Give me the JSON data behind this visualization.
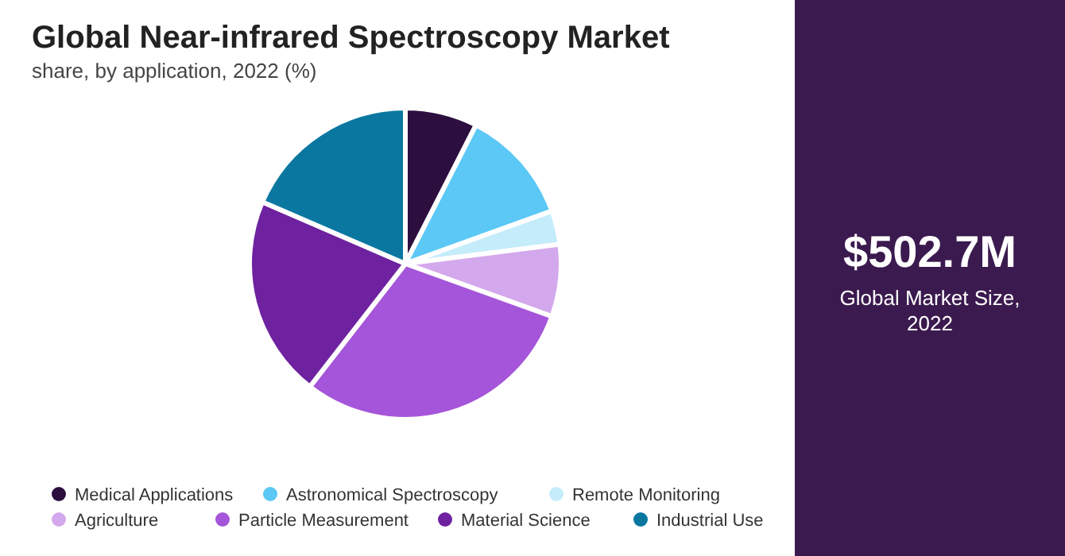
{
  "chart_data": {
    "type": "pie",
    "title": "Global Near-infrared Spectroscopy Market",
    "subtitle": "share, by application, 2022 (%)",
    "categories": [
      "Medical Applications",
      "Astronomical Spectroscopy",
      "Remote Monitoring",
      "Agriculture",
      "Particle Measurement",
      "Material Science",
      "Industrial Use"
    ],
    "values": [
      7.5,
      12,
      3.5,
      7.5,
      30,
      21,
      18.5
    ],
    "colors": [
      "#2d0f3f",
      "#5bc8f5",
      "#c5ecfb",
      "#d4a8ec",
      "#a555d9",
      "#6e22a0",
      "#0a77a1"
    ],
    "legend": "bottom",
    "annotations": [
      "$502.7M",
      "Global Market Size, 2022"
    ]
  }
}
